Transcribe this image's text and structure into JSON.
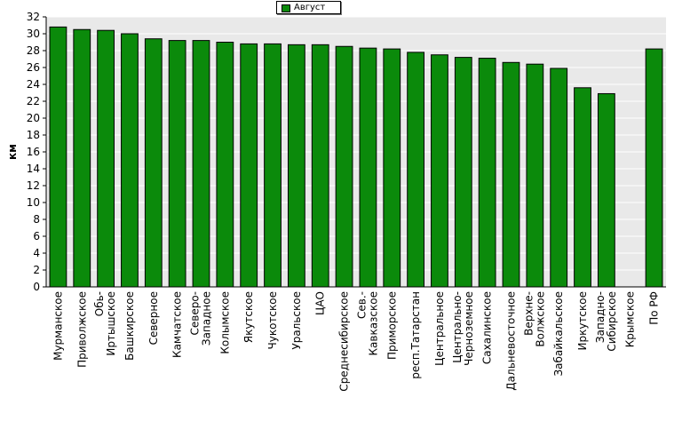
{
  "chart_data": {
    "type": "bar",
    "title": "",
    "xlabel": "",
    "ylabel": "км",
    "ylim": [
      0,
      32
    ],
    "ytick_step": 2,
    "grid": true,
    "legend_position": "top-center",
    "colors": {
      "bar": "#0b8a0b",
      "bar_edge": "#000000",
      "plot_background": "#e9e9e9",
      "grid": "#ffffff"
    },
    "categories": [
      [
        "Мурманское"
      ],
      [
        "Приволжское"
      ],
      [
        "Обь-",
        "Иртышское"
      ],
      [
        "Башкирское"
      ],
      [
        "Северное"
      ],
      [
        "Камчатское"
      ],
      [
        "Северо-",
        "Западное"
      ],
      [
        "Колымское"
      ],
      [
        "Якутское"
      ],
      [
        "Чукотское"
      ],
      [
        "Уральское"
      ],
      [
        "ЦАО"
      ],
      [
        "Среднесибирское"
      ],
      [
        "Сев.-",
        "Кавказское"
      ],
      [
        "Приморское"
      ],
      [
        "респ.Татарстан"
      ],
      [
        "Центральное"
      ],
      [
        "Центрально-",
        "Черноземное"
      ],
      [
        "Сахалинское"
      ],
      [
        "Дальневосточное"
      ],
      [
        "Верхне-",
        "Волжское"
      ],
      [
        "Забайкальское"
      ],
      [
        "Иркутское"
      ],
      [
        "Западно-",
        "Сибирское"
      ],
      [
        "Крымское"
      ],
      [
        "По РФ"
      ]
    ],
    "series": [
      {
        "name": "Август",
        "values": [
          30.8,
          30.5,
          30.4,
          30.0,
          29.4,
          29.2,
          29.2,
          29.0,
          28.8,
          28.8,
          28.7,
          28.7,
          28.5,
          28.3,
          28.2,
          27.8,
          27.5,
          27.2,
          27.1,
          26.6,
          26.4,
          25.9,
          23.6,
          22.9,
          0,
          28.2
        ]
      }
    ]
  }
}
